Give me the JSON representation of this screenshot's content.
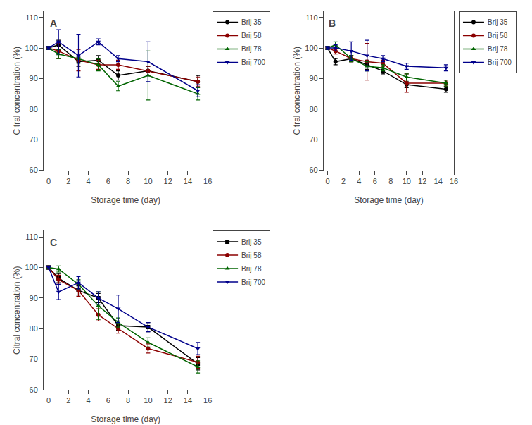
{
  "chart_data": [
    {
      "type": "line",
      "annotations": [
        "A"
      ],
      "x_label": "Storage time (day)",
      "y_label": "Citral concentration (%)",
      "x": [
        0,
        1,
        3,
        5,
        7,
        10,
        15
      ],
      "series": [
        {
          "name": "Brij 35",
          "color": "#000000",
          "marker": "circle",
          "values": [
            100,
            101.0,
            95.5,
            96.0,
            91.0,
            92.5,
            89.0
          ],
          "yerr": [
            0.5,
            1.5,
            1.5,
            1.5,
            1.5,
            1.5,
            2.0
          ]
        },
        {
          "name": "Brij 58",
          "color": "#8B0000",
          "marker": "circle",
          "values": [
            100,
            99.0,
            96.0,
            94.5,
            94.5,
            92.5,
            89.0
          ],
          "yerr": [
            0.5,
            2.5,
            3.5,
            1.5,
            1.5,
            1.5,
            1.5
          ]
        },
        {
          "name": "Brij 78",
          "color": "#006400",
          "marker": "triangle-up",
          "values": [
            100,
            98.0,
            96.5,
            94.5,
            87.5,
            91.0,
            85.0
          ],
          "yerr": [
            0.5,
            1.5,
            1.5,
            2.0,
            1.5,
            8.0,
            2.0
          ]
        },
        {
          "name": "Brij 700",
          "color": "#00008B",
          "marker": "triangle-down",
          "values": [
            100,
            102.0,
            97.5,
            102.0,
            96.5,
            95.5,
            86.0
          ],
          "yerr": [
            0.5,
            4.0,
            7.0,
            1.0,
            1.0,
            6.5,
            2.0
          ]
        }
      ],
      "xlim": [
        -0.5,
        16
      ],
      "xticks": [
        0,
        2,
        4,
        6,
        8,
        10,
        12,
        14,
        16
      ],
      "ylim": [
        60,
        112
      ],
      "yticks": [
        60,
        70,
        80,
        90,
        100,
        110
      ],
      "grid": false,
      "legend": "upper right"
    },
    {
      "type": "line",
      "annotations": [
        "B"
      ],
      "x_label": "Storage time (day)",
      "y_label": "Citral concentration (%)",
      "x": [
        0,
        1,
        3,
        5,
        7,
        10,
        15
      ],
      "series": [
        {
          "name": "Brij 35",
          "color": "#000000",
          "marker": "circle",
          "values": [
            100,
            95.5,
            96.5,
            94.5,
            92.5,
            88.0,
            86.5
          ],
          "yerr": [
            0.5,
            1.0,
            1.0,
            1.5,
            1.0,
            1.0,
            1.0
          ]
        },
        {
          "name": "Brij 58",
          "color": "#8B0000",
          "marker": "circle",
          "values": [
            100,
            99.0,
            96.5,
            95.5,
            95.0,
            88.5,
            88.5
          ],
          "yerr": [
            0.5,
            1.0,
            1.0,
            6.0,
            1.0,
            3.0,
            1.0
          ]
        },
        {
          "name": "Brij 78",
          "color": "#006400",
          "marker": "triangle-up",
          "values": [
            100,
            101.0,
            96.5,
            94.0,
            93.5,
            90.5,
            88.5
          ],
          "yerr": [
            0.5,
            1.0,
            1.0,
            1.5,
            1.0,
            1.0,
            1.0
          ]
        },
        {
          "name": "Brij 700",
          "color": "#00008B",
          "marker": "triangle-down",
          "values": [
            100,
            100.0,
            99.0,
            97.5,
            96.5,
            94.0,
            93.5
          ],
          "yerr": [
            0.5,
            1.0,
            3.0,
            5.0,
            1.0,
            1.0,
            1.0
          ]
        }
      ],
      "xlim": [
        -0.5,
        16
      ],
      "xticks": [
        0,
        2,
        4,
        6,
        8,
        10,
        12,
        14,
        16
      ],
      "ylim": [
        60,
        112
      ],
      "yticks": [
        60,
        70,
        80,
        90,
        100,
        110
      ],
      "grid": false,
      "legend": "upper right"
    },
    {
      "type": "line",
      "annotations": [
        "C"
      ],
      "x_label": "Storage time (day)",
      "y_label": "Citral concentration (%)",
      "x": [
        0,
        1,
        3,
        5,
        7,
        10,
        15
      ],
      "series": [
        {
          "name": "Brij 35",
          "color": "#000000",
          "marker": "square",
          "values": [
            100,
            96.5,
            92.5,
            90.0,
            81.0,
            80.5,
            68.5
          ],
          "yerr": [
            0.5,
            1.5,
            1.5,
            1.5,
            1.5,
            1.5,
            2.0
          ]
        },
        {
          "name": "Brij 58",
          "color": "#8B0000",
          "marker": "circle",
          "values": [
            100,
            96.0,
            92.5,
            84.5,
            80.0,
            73.5,
            69.0
          ],
          "yerr": [
            0.5,
            1.5,
            2.0,
            2.0,
            1.5,
            1.5,
            2.0
          ]
        },
        {
          "name": "Brij 78",
          "color": "#006400",
          "marker": "triangle-up",
          "values": [
            100,
            99.5,
            94.5,
            87.5,
            82.0,
            75.5,
            67.5
          ],
          "yerr": [
            0.5,
            1.0,
            1.5,
            4.5,
            1.5,
            1.5,
            2.0
          ]
        },
        {
          "name": "Brij 700",
          "color": "#00008B",
          "marker": "triangle-down",
          "values": [
            100,
            92.0,
            95.0,
            90.0,
            86.5,
            80.5,
            73.5
          ],
          "yerr": [
            0.5,
            2.5,
            2.0,
            2.0,
            4.5,
            1.5,
            2.0
          ]
        }
      ],
      "xlim": [
        -0.5,
        16
      ],
      "xticks": [
        0,
        2,
        4,
        6,
        8,
        10,
        12,
        14,
        16
      ],
      "ylim": [
        60,
        112
      ],
      "yticks": [
        60,
        70,
        80,
        90,
        100,
        110
      ],
      "grid": false,
      "legend": "upper right"
    }
  ]
}
